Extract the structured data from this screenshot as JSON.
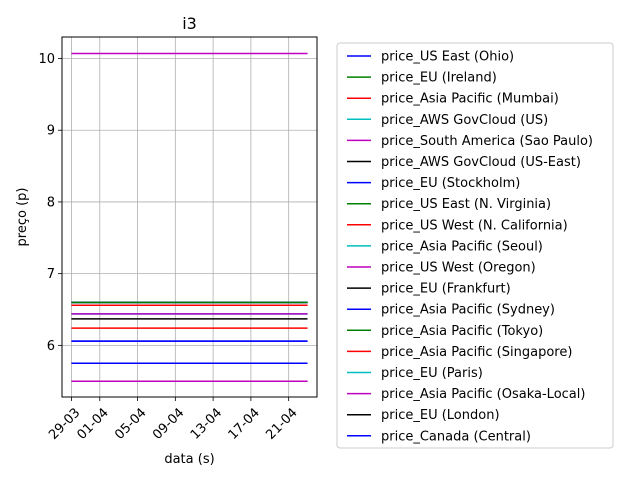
{
  "chart_data": {
    "type": "line",
    "title": "i3",
    "xlabel": "data (s)",
    "ylabel": "preço (p)",
    "x_tick_labels": [
      "29-03",
      "01-04",
      "05-04",
      "09-04",
      "13-04",
      "17-04",
      "21-04"
    ],
    "x_tick_dates": [
      "2019-03-29",
      "2019-04-01",
      "2019-04-05",
      "2019-04-09",
      "2019-04-13",
      "2019-04-17",
      "2019-04-21"
    ],
    "x_range": [
      "2019-03-28",
      "2019-04-24"
    ],
    "x_data_range": [
      "2019-03-29",
      "2019-04-23"
    ],
    "y_ticks": [
      6,
      7,
      8,
      9,
      10
    ],
    "ylim": [
      5.28,
      10.3
    ],
    "grid": true,
    "legend_position": "outside-right",
    "series": [
      {
        "name": "price_US East (Ohio)",
        "color": "#0000ff",
        "value": 5.75
      },
      {
        "name": "price_EU (Ireland)",
        "color": "#008000",
        "value": 6.6
      },
      {
        "name": "price_Asia Pacific (Mumbai)",
        "color": "#ff0000",
        "value": 6.24
      },
      {
        "name": "price_AWS GovCloud (US)",
        "color": "#00bfbf",
        "value": 6.6
      },
      {
        "name": "price_South America (Sao Paulo)",
        "color": "#bf00bf",
        "value": 10.07
      },
      {
        "name": "price_AWS GovCloud (US-East)",
        "color": "#000000",
        "value": 6.6
      },
      {
        "name": "price_EU (Stockholm)",
        "color": "#0000ff",
        "value": 6.06
      },
      {
        "name": "price_US East (N. Virginia)",
        "color": "#008000",
        "value": 5.5
      },
      {
        "name": "price_US West (N. California)",
        "color": "#ff0000",
        "value": 6.56
      },
      {
        "name": "price_Asia Pacific (Seoul)",
        "color": "#00bfbf",
        "value": 6.44
      },
      {
        "name": "price_US West (Oregon)",
        "color": "#bf00bf",
        "value": 5.5
      },
      {
        "name": "price_EU (Frankfurt)",
        "color": "#000000",
        "value": 6.6
      },
      {
        "name": "price_Asia Pacific (Sydney)",
        "color": "#0000ff",
        "value": 6.6
      },
      {
        "name": "price_Asia Pacific (Tokyo)",
        "color": "#008000",
        "value": 6.6
      },
      {
        "name": "price_Asia Pacific (Singapore)",
        "color": "#ff0000",
        "value": 6.56
      },
      {
        "name": "price_EU (Paris)",
        "color": "#00bfbf",
        "value": 6.44
      },
      {
        "name": "price_Asia Pacific (Osaka-Local)",
        "color": "#bf00bf",
        "value": 6.44
      },
      {
        "name": "price_EU (London)",
        "color": "#000000",
        "value": 6.37
      },
      {
        "name": "price_Canada (Central)",
        "color": "#0000ff",
        "value": 6.06
      }
    ]
  }
}
